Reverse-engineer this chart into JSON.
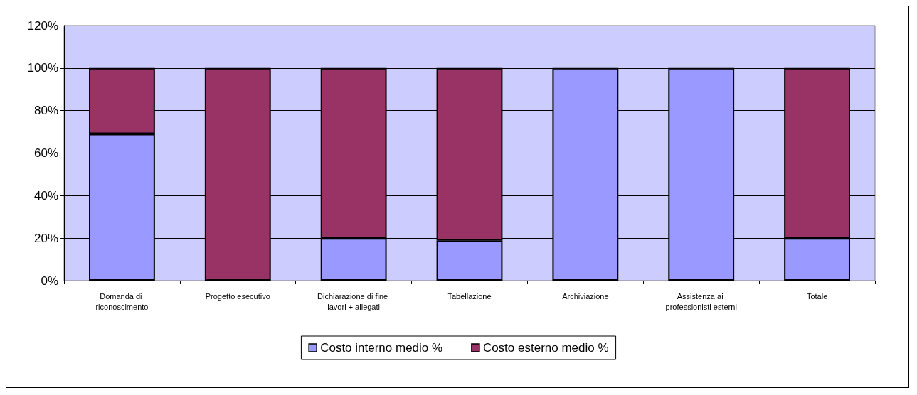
{
  "chart_data": {
    "type": "bar",
    "stacked": true,
    "categories": [
      "Domanda di riconoscimento",
      "Progetto esecutivo",
      "Dichiarazione di fine lavori + allegati",
      "Tabellazione",
      "Archiviazione",
      "Assistenza ai professionisti esterni",
      "Totale"
    ],
    "series": [
      {
        "name": "Costo interno medio %",
        "color": "#9999ff",
        "values": [
          69,
          0,
          20,
          19,
          100,
          100,
          20
        ]
      },
      {
        "name": "Costo esterno medio %",
        "color": "#993366",
        "values": [
          31,
          100,
          80,
          81,
          0,
          0,
          80
        ]
      }
    ],
    "ylim": [
      0,
      120
    ],
    "yticks": [
      {
        "value": 0,
        "label": "0%"
      },
      {
        "value": 20,
        "label": "20%"
      },
      {
        "value": 40,
        "label": "40%"
      },
      {
        "value": 60,
        "label": "60%"
      },
      {
        "value": 80,
        "label": "80%"
      },
      {
        "value": 100,
        "label": "100%"
      },
      {
        "value": 120,
        "label": "120%"
      }
    ],
    "grid": "y",
    "legend": "bottom"
  }
}
